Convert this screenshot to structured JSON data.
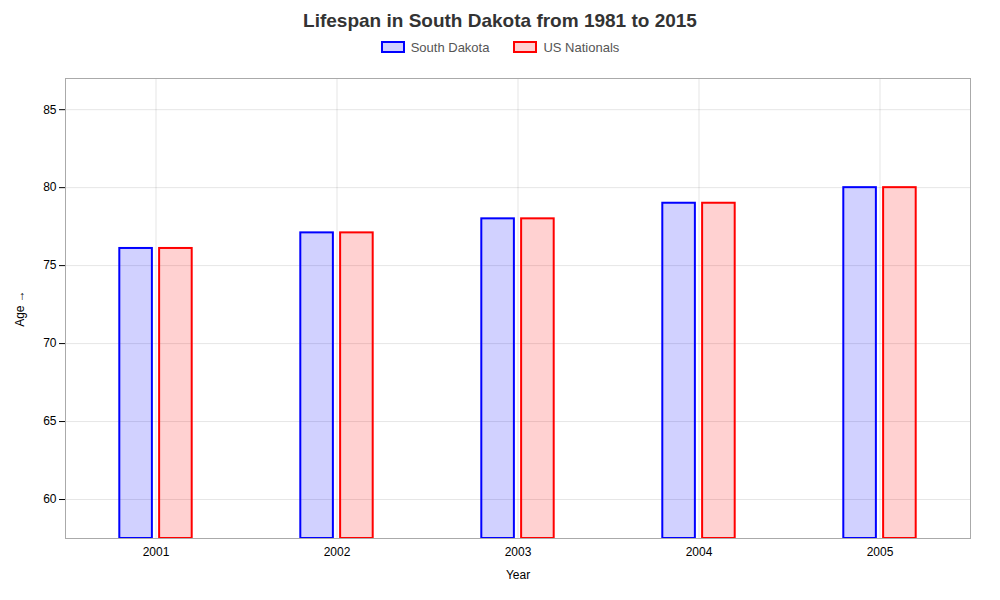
{
  "chart_data": {
    "type": "bar",
    "title": "Lifespan in South Dakota from 1981 to 2015",
    "x_label": "Year",
    "y_label": "Age",
    "categories": [
      "2001",
      "2002",
      "2003",
      "2004",
      "2005"
    ],
    "series": [
      {
        "name": "South Dakota",
        "color": "#0000ff",
        "values": [
          76.1,
          77.1,
          78.0,
          79.0,
          80.0
        ]
      },
      {
        "name": "US Nationals",
        "color": "#ff0000",
        "values": [
          76.1,
          77.1,
          78.0,
          79.0,
          80.0
        ]
      }
    ],
    "ylim": [
      57.5,
      87
    ],
    "yticks": [
      60,
      65,
      70,
      75,
      80,
      85
    ],
    "grid": true,
    "legend": "top"
  }
}
